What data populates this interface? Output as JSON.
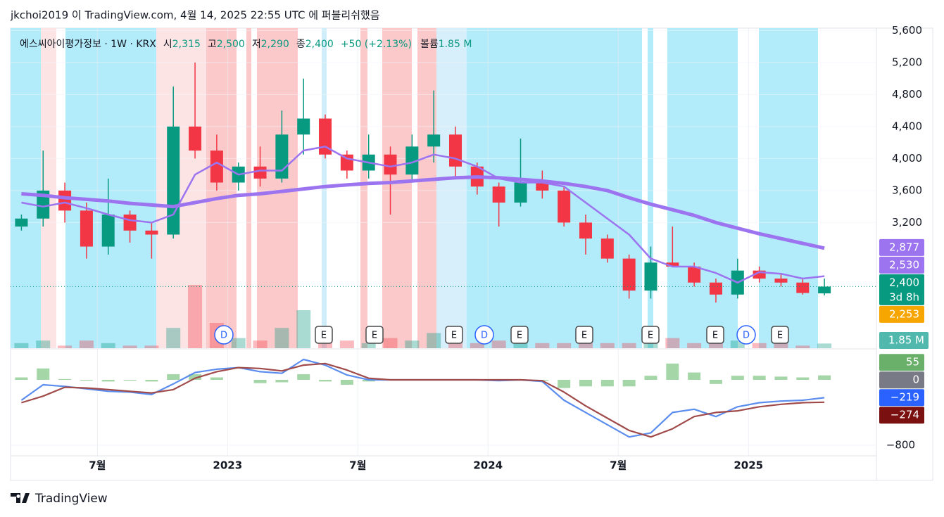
{
  "header": {
    "text": "jkchoi2019 이 TradingView.com, 4월 14, 2025 22:55 UTC 에 퍼블리쉬했음"
  },
  "legend": {
    "symbol": "에스씨아이평가정보 · 1W · KRX",
    "open_label": "시",
    "open": "2,315",
    "high_label": "고",
    "high": "2,500",
    "low_label": "저",
    "low": "2,290",
    "close_label": "종",
    "close": "2,400",
    "change": "+50 (+2.13%)",
    "volume_label": "볼륨",
    "volume": "1.85 M"
  },
  "chart_data": [
    {
      "type": "candlestick",
      "x": [
        "2022-03",
        "2022-04",
        "2022-05",
        "2022-06",
        "2022-07",
        "2022-08",
        "2022-09",
        "2022-10",
        "2022-11",
        "2022-12",
        "2023-01",
        "2023-02",
        "2023-03",
        "2023-04",
        "2023-05",
        "2023-06",
        "2023-07",
        "2023-08",
        "2023-09",
        "2023-10",
        "2023-11",
        "2023-12",
        "2024-01",
        "2024-02",
        "2024-03",
        "2024-04",
        "2024-05",
        "2024-06",
        "2024-07",
        "2024-08",
        "2024-09",
        "2024-10",
        "2024-11",
        "2024-12",
        "2025-01",
        "2025-02",
        "2025-03",
        "2025-04"
      ],
      "open": [
        3150,
        3250,
        3600,
        3350,
        2900,
        3300,
        3100,
        3050,
        4400,
        4100,
        3700,
        3900,
        3750,
        4300,
        4500,
        4050,
        3850,
        4050,
        3800,
        4150,
        4300,
        3900,
        3650,
        3450,
        3700,
        3600,
        3200,
        3000,
        2750,
        2350,
        2700,
        2650,
        2450,
        2300,
        2600,
        2500,
        2450,
        2315
      ],
      "high": [
        3300,
        4100,
        3700,
        3450,
        3750,
        3350,
        3200,
        4900,
        5200,
        4300,
        3950,
        4150,
        4600,
        5000,
        4550,
        4100,
        4300,
        4150,
        4300,
        4850,
        4400,
        3950,
        3700,
        4250,
        3850,
        3650,
        3300,
        3050,
        2800,
        2900,
        3150,
        2700,
        2500,
        2750,
        2650,
        2550,
        2500,
        2500
      ],
      "low": [
        3100,
        3150,
        3200,
        2750,
        2800,
        2950,
        2750,
        3000,
        4000,
        3600,
        3600,
        3650,
        3700,
        4050,
        4000,
        3750,
        3750,
        3300,
        3700,
        3950,
        3750,
        3550,
        3150,
        3400,
        3500,
        3150,
        2800,
        2700,
        2250,
        2250,
        2650,
        2400,
        2200,
        2250,
        2450,
        2400,
        2300,
        2290
      ],
      "close": [
        3250,
        3600,
        3350,
        2900,
        3300,
        3100,
        3050,
        4400,
        4100,
        3700,
        3900,
        3750,
        4300,
        4500,
        4050,
        3850,
        4050,
        3800,
        4150,
        4300,
        3900,
        3650,
        3450,
        3700,
        3600,
        3200,
        3000,
        2750,
        2350,
        2700,
        2650,
        2450,
        2300,
        2600,
        2500,
        2450,
        2320,
        2400
      ],
      "up_color": "#089981",
      "down_color": "#f23645",
      "series": [
        {
          "color": "#9c74f0",
          "width": 5,
          "values": [
            3560,
            3540,
            3510,
            3490,
            3470,
            3440,
            3420,
            3400,
            3450,
            3500,
            3540,
            3560,
            3590,
            3620,
            3650,
            3670,
            3690,
            3700,
            3720,
            3740,
            3760,
            3770,
            3760,
            3740,
            3720,
            3690,
            3650,
            3600,
            3510,
            3430,
            3360,
            3290,
            3200,
            3130,
            3060,
            3000,
            2940,
            2880
          ]
        },
        {
          "color": "#9c74f0",
          "width": 2.5,
          "values": [
            3450,
            3400,
            3450,
            3380,
            3300,
            3230,
            3200,
            3300,
            3800,
            3950,
            3800,
            3850,
            3850,
            4100,
            4150,
            4000,
            3950,
            3900,
            3950,
            4050,
            4000,
            3900,
            3750,
            3700,
            3700,
            3650,
            3450,
            3250,
            3050,
            2750,
            2650,
            2650,
            2570,
            2450,
            2580,
            2560,
            2500,
            2530
          ]
        }
      ],
      "volume": [
        2,
        3,
        1,
        3,
        2,
        1,
        1,
        8,
        25,
        10,
        4,
        3,
        8,
        15,
        6,
        3,
        2,
        4,
        3,
        6,
        3,
        2,
        3,
        5,
        2,
        2,
        2,
        2,
        2,
        3,
        4,
        2,
        2,
        3,
        2,
        2,
        1,
        1.85
      ],
      "volume_lim": [
        0,
        50
      ],
      "volume_badge": "1.85 M",
      "ylim": [
        1630,
        5630
      ],
      "yticks": [
        {
          "value": 3200,
          "label": "3,200"
        },
        {
          "value": 3600,
          "label": "3,600"
        },
        {
          "value": 4000,
          "label": "4,000"
        },
        {
          "value": 4400,
          "label": "4,400"
        },
        {
          "value": 4800,
          "label": "4,800"
        },
        {
          "value": 5200,
          "label": "5,200"
        },
        {
          "value": 5600,
          "label": "5,600"
        }
      ],
      "xticks": [
        {
          "value": "2022-07",
          "label": "7월"
        },
        {
          "value": "2023-01",
          "label": "2023"
        },
        {
          "value": "2023-07",
          "label": "7월"
        },
        {
          "value": "2024-01",
          "label": "2024"
        },
        {
          "value": "2024-07",
          "label": "7월"
        },
        {
          "value": "2025-01",
          "label": "2025"
        }
      ],
      "badges": [
        {
          "value": 2877,
          "label": "2,877",
          "color": "#9c74f0"
        },
        {
          "value": 2530,
          "label": "2,530",
          "color": "#9c74f0"
        },
        {
          "value": 2400,
          "label": "2,400",
          "sub": "3d 8h",
          "color": "#089981"
        },
        {
          "value": 2253,
          "label": "2,253",
          "color": "#f7a600"
        }
      ]
    },
    {
      "type": "macd",
      "x": [
        "2022-03",
        "2022-04",
        "2022-05",
        "2022-06",
        "2022-07",
        "2022-08",
        "2022-09",
        "2022-10",
        "2022-11",
        "2022-12",
        "2023-01",
        "2023-02",
        "2023-03",
        "2023-04",
        "2023-05",
        "2023-06",
        "2023-07",
        "2023-08",
        "2023-09",
        "2023-10",
        "2023-11",
        "2023-12",
        "2024-01",
        "2024-02",
        "2024-03",
        "2024-04",
        "2024-05",
        "2024-06",
        "2024-07",
        "2024-08",
        "2024-09",
        "2024-10",
        "2024-11",
        "2024-12",
        "2025-01",
        "2025-02",
        "2025-03",
        "2025-04"
      ],
      "histogram": [
        30,
        140,
        10,
        -10,
        -20,
        -10,
        -20,
        70,
        70,
        30,
        0,
        -40,
        -30,
        70,
        -20,
        -60,
        -20,
        0,
        0,
        0,
        0,
        0,
        -10,
        0,
        -10,
        -100,
        -80,
        -80,
        -80,
        50,
        200,
        90,
        -50,
        50,
        50,
        40,
        30,
        55
      ],
      "histogram_color": "#a5d6a7",
      "series": [
        {
          "color": "#5b8def",
          "values": [
            -250,
            -60,
            -80,
            -110,
            -140,
            -150,
            -180,
            -50,
            90,
            130,
            150,
            100,
            80,
            250,
            180,
            60,
            0,
            0,
            0,
            0,
            0,
            0,
            -10,
            0,
            -20,
            -250,
            -400,
            -550,
            -700,
            -650,
            -400,
            -360,
            -450,
            -330,
            -280,
            -260,
            -250,
            -219
          ]
        },
        {
          "color": "#a04a4a",
          "values": [
            -280,
            -200,
            -90,
            -100,
            -120,
            -140,
            -160,
            -120,
            20,
            100,
            150,
            140,
            110,
            180,
            200,
            120,
            20,
            0,
            0,
            0,
            0,
            0,
            0,
            0,
            -10,
            -150,
            -320,
            -470,
            -620,
            -700,
            -600,
            -450,
            -400,
            -380,
            -330,
            -300,
            -280,
            -274
          ]
        }
      ],
      "ylim": [
        -948,
        345
      ],
      "yticks": [
        {
          "value": -800,
          "label": "−800"
        }
      ],
      "badges": [
        {
          "value": 55,
          "color": "#6ab06a"
        },
        {
          "value": 0,
          "color": "#787b86"
        },
        {
          "value": -219,
          "label": "−219",
          "color": "#2962ff"
        },
        {
          "value": -274,
          "label": "−274",
          "color": "#7b1010"
        }
      ]
    }
  ],
  "events": [
    "D",
    "E",
    "E",
    "E",
    "D",
    "E",
    "E",
    "E",
    "E",
    "D",
    "E"
  ],
  "footer": {
    "brand": "TradingView"
  }
}
